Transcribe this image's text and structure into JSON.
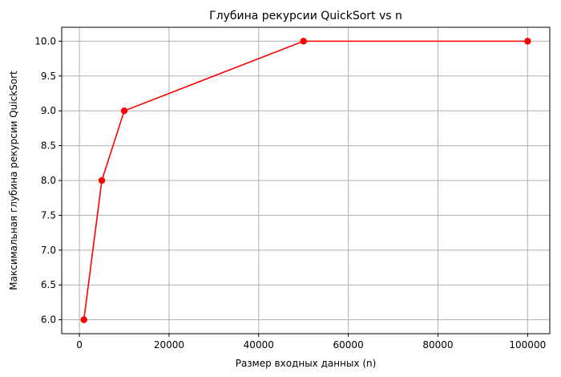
{
  "chart_data": {
    "type": "line",
    "title": "Глубина рекурсии QuickSort vs n",
    "xlabel": "Размер входных данных (n)",
    "ylabel": "Максимальная глубина рекурсии QuickSort",
    "x": [
      1000,
      5000,
      10000,
      50000,
      100000
    ],
    "series": [
      {
        "values": [
          6,
          8,
          9,
          10,
          10
        ],
        "color": "#ff0000",
        "marker": "circle"
      }
    ],
    "xlim": [
      -3950,
      104950
    ],
    "ylim": [
      5.8,
      10.2
    ],
    "xticks": [
      0,
      20000,
      40000,
      60000,
      80000,
      100000
    ],
    "xtick_labels": [
      "0",
      "20000",
      "40000",
      "60000",
      "80000",
      "100000"
    ],
    "yticks": [
      6.0,
      6.5,
      7.0,
      7.5,
      8.0,
      8.5,
      9.0,
      9.5,
      10.0
    ],
    "ytick_labels": [
      "6.0",
      "6.5",
      "7.0",
      "7.5",
      "8.0",
      "8.5",
      "9.0",
      "9.5",
      "10.0"
    ],
    "grid": true,
    "grid_color": "#b0b0b0"
  }
}
